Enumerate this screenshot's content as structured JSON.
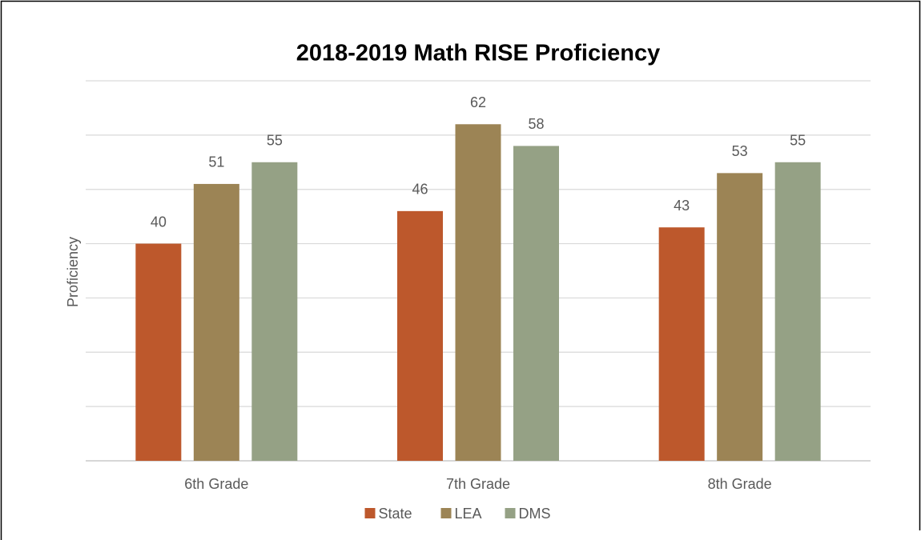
{
  "chart_data": {
    "type": "bar",
    "title": "2018-2019 Math RISE Proficiency",
    "y_label": "Proficiency",
    "categories": [
      "6th Grade",
      "7th Grade",
      "8th Grade"
    ],
    "series": [
      {
        "name": "State",
        "color": "#bd582c",
        "values": [
          40,
          46,
          43
        ]
      },
      {
        "name": "LEA",
        "color": "#9c8455",
        "values": [
          51,
          62,
          53
        ]
      },
      {
        "name": "DMS",
        "color": "#95a185",
        "values": [
          55,
          58,
          55
        ]
      }
    ],
    "ylim": [
      0,
      70
    ],
    "yticks": [
      0,
      10,
      20,
      30,
      40,
      50,
      60,
      70
    ],
    "grid": true,
    "legend": "bottom"
  }
}
